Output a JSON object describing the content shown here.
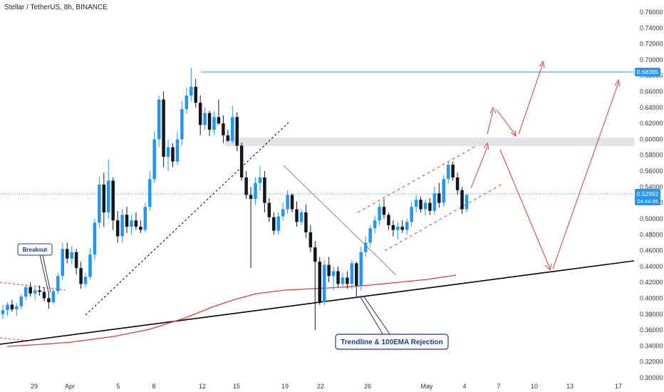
{
  "header": {
    "title": "Stellar / TetherUS, 8h, BINANCE"
  },
  "price_labels": {
    "resistance": "0.68385",
    "current": "0.52992",
    "countdown": "04:44:35"
  },
  "colors": {
    "up": "#2196f3",
    "down": "#131722",
    "ema": "#e53935",
    "trend": "#000000",
    "resistance": "#2196f3",
    "projection": "#e53935",
    "zone": "#d6d8dc"
  },
  "annotations": {
    "breakout": "Breakout",
    "rejection": "Trendline & 100EMA Rejection"
  },
  "chart_data": {
    "type": "candlestick",
    "title": "Stellar / TetherUS, 8h, BINANCE",
    "y_ticks": [
      "0.76000",
      "0.74000",
      "0.72000",
      "0.70000",
      "0.68000",
      "0.66000",
      "0.64000",
      "0.62000",
      "0.60000",
      "0.58000",
      "0.56000",
      "0.54000",
      "0.52000",
      "0.50000",
      "0.48000",
      "0.46000",
      "0.44000",
      "0.42000",
      "0.40000",
      "0.38000",
      "0.36000",
      "0.34000",
      "0.32000",
      "0.30000"
    ],
    "ylim": [
      0.3,
      0.76
    ],
    "x_ticks": [
      "29",
      "Apr",
      "5",
      "8",
      "12",
      "15",
      "19",
      "22",
      "26",
      "May",
      "4",
      "7",
      "10",
      "13",
      "17"
    ],
    "candles": [
      {
        "o": 0.38,
        "h": 0.392,
        "l": 0.374,
        "c": 0.385
      },
      {
        "o": 0.385,
        "h": 0.395,
        "l": 0.378,
        "c": 0.392
      },
      {
        "o": 0.392,
        "h": 0.398,
        "l": 0.383,
        "c": 0.386
      },
      {
        "o": 0.386,
        "h": 0.394,
        "l": 0.378,
        "c": 0.39
      },
      {
        "o": 0.39,
        "h": 0.405,
        "l": 0.386,
        "c": 0.402
      },
      {
        "o": 0.402,
        "h": 0.418,
        "l": 0.398,
        "c": 0.414
      },
      {
        "o": 0.414,
        "h": 0.42,
        "l": 0.402,
        "c": 0.406
      },
      {
        "o": 0.406,
        "h": 0.414,
        "l": 0.398,
        "c": 0.41
      },
      {
        "o": 0.41,
        "h": 0.416,
        "l": 0.403,
        "c": 0.408
      },
      {
        "o": 0.408,
        "h": 0.414,
        "l": 0.396,
        "c": 0.4
      },
      {
        "o": 0.4,
        "h": 0.408,
        "l": 0.387,
        "c": 0.395
      },
      {
        "o": 0.395,
        "h": 0.412,
        "l": 0.392,
        "c": 0.409
      },
      {
        "o": 0.409,
        "h": 0.432,
        "l": 0.405,
        "c": 0.428
      },
      {
        "o": 0.428,
        "h": 0.47,
        "l": 0.423,
        "c": 0.462
      },
      {
        "o": 0.462,
        "h": 0.47,
        "l": 0.444,
        "c": 0.45
      },
      {
        "o": 0.45,
        "h": 0.465,
        "l": 0.443,
        "c": 0.458
      },
      {
        "o": 0.458,
        "h": 0.462,
        "l": 0.43,
        "c": 0.438
      },
      {
        "o": 0.438,
        "h": 0.446,
        "l": 0.412,
        "c": 0.418
      },
      {
        "o": 0.418,
        "h": 0.432,
        "l": 0.414,
        "c": 0.427
      },
      {
        "o": 0.427,
        "h": 0.463,
        "l": 0.424,
        "c": 0.455
      },
      {
        "o": 0.455,
        "h": 0.5,
        "l": 0.448,
        "c": 0.495
      },
      {
        "o": 0.495,
        "h": 0.553,
        "l": 0.488,
        "c": 0.543
      },
      {
        "o": 0.543,
        "h": 0.558,
        "l": 0.49,
        "c": 0.508
      },
      {
        "o": 0.508,
        "h": 0.575,
        "l": 0.5,
        "c": 0.548
      },
      {
        "o": 0.548,
        "h": 0.552,
        "l": 0.486,
        "c": 0.498
      },
      {
        "o": 0.498,
        "h": 0.51,
        "l": 0.47,
        "c": 0.478
      },
      {
        "o": 0.478,
        "h": 0.512,
        "l": 0.47,
        "c": 0.505
      },
      {
        "o": 0.505,
        "h": 0.515,
        "l": 0.482,
        "c": 0.49
      },
      {
        "o": 0.49,
        "h": 0.505,
        "l": 0.48,
        "c": 0.498
      },
      {
        "o": 0.498,
        "h": 0.508,
        "l": 0.486,
        "c": 0.49
      },
      {
        "o": 0.49,
        "h": 0.498,
        "l": 0.482,
        "c": 0.486
      },
      {
        "o": 0.486,
        "h": 0.52,
        "l": 0.483,
        "c": 0.515
      },
      {
        "o": 0.515,
        "h": 0.56,
        "l": 0.51,
        "c": 0.55
      },
      {
        "o": 0.55,
        "h": 0.61,
        "l": 0.545,
        "c": 0.6
      },
      {
        "o": 0.6,
        "h": 0.655,
        "l": 0.59,
        "c": 0.65
      },
      {
        "o": 0.65,
        "h": 0.66,
        "l": 0.565,
        "c": 0.578
      },
      {
        "o": 0.578,
        "h": 0.6,
        "l": 0.56,
        "c": 0.59
      },
      {
        "o": 0.59,
        "h": 0.595,
        "l": 0.565,
        "c": 0.572
      },
      {
        "o": 0.572,
        "h": 0.61,
        "l": 0.568,
        "c": 0.6
      },
      {
        "o": 0.6,
        "h": 0.648,
        "l": 0.592,
        "c": 0.638
      },
      {
        "o": 0.638,
        "h": 0.665,
        "l": 0.632,
        "c": 0.655
      },
      {
        "o": 0.655,
        "h": 0.69,
        "l": 0.648,
        "c": 0.666
      },
      {
        "o": 0.666,
        "h": 0.676,
        "l": 0.64,
        "c": 0.646
      },
      {
        "o": 0.646,
        "h": 0.655,
        "l": 0.605,
        "c": 0.618
      },
      {
        "o": 0.618,
        "h": 0.64,
        "l": 0.612,
        "c": 0.633
      },
      {
        "o": 0.633,
        "h": 0.636,
        "l": 0.604,
        "c": 0.612
      },
      {
        "o": 0.612,
        "h": 0.635,
        "l": 0.606,
        "c": 0.628
      },
      {
        "o": 0.628,
        "h": 0.65,
        "l": 0.618,
        "c": 0.62
      },
      {
        "o": 0.62,
        "h": 0.63,
        "l": 0.595,
        "c": 0.605
      },
      {
        "o": 0.605,
        "h": 0.612,
        "l": 0.597,
        "c": 0.598
      },
      {
        "o": 0.598,
        "h": 0.642,
        "l": 0.595,
        "c": 0.628
      },
      {
        "o": 0.628,
        "h": 0.634,
        "l": 0.585,
        "c": 0.592
      },
      {
        "o": 0.592,
        "h": 0.596,
        "l": 0.548,
        "c": 0.552
      },
      {
        "o": 0.552,
        "h": 0.56,
        "l": 0.525,
        "c": 0.53
      },
      {
        "o": 0.53,
        "h": 0.54,
        "l": 0.438,
        "c": 0.525
      },
      {
        "o": 0.525,
        "h": 0.552,
        "l": 0.518,
        "c": 0.545
      },
      {
        "o": 0.545,
        "h": 0.566,
        "l": 0.535,
        "c": 0.552
      },
      {
        "o": 0.552,
        "h": 0.56,
        "l": 0.508,
        "c": 0.52
      },
      {
        "o": 0.52,
        "h": 0.526,
        "l": 0.496,
        "c": 0.502
      },
      {
        "o": 0.502,
        "h": 0.508,
        "l": 0.48,
        "c": 0.485
      },
      {
        "o": 0.485,
        "h": 0.508,
        "l": 0.48,
        "c": 0.503
      },
      {
        "o": 0.503,
        "h": 0.52,
        "l": 0.498,
        "c": 0.512
      },
      {
        "o": 0.512,
        "h": 0.536,
        "l": 0.506,
        "c": 0.53
      },
      {
        "o": 0.53,
        "h": 0.532,
        "l": 0.508,
        "c": 0.512
      },
      {
        "o": 0.512,
        "h": 0.522,
        "l": 0.49,
        "c": 0.496
      },
      {
        "o": 0.496,
        "h": 0.512,
        "l": 0.492,
        "c": 0.508
      },
      {
        "o": 0.508,
        "h": 0.518,
        "l": 0.476,
        "c": 0.483
      },
      {
        "o": 0.483,
        "h": 0.492,
        "l": 0.458,
        "c": 0.464
      },
      {
        "o": 0.464,
        "h": 0.472,
        "l": 0.36,
        "c": 0.446
      },
      {
        "o": 0.446,
        "h": 0.452,
        "l": 0.392,
        "c": 0.395
      },
      {
        "o": 0.395,
        "h": 0.448,
        "l": 0.391,
        "c": 0.442
      },
      {
        "o": 0.442,
        "h": 0.452,
        "l": 0.42,
        "c": 0.428
      },
      {
        "o": 0.428,
        "h": 0.44,
        "l": 0.41,
        "c": 0.434
      },
      {
        "o": 0.434,
        "h": 0.44,
        "l": 0.414,
        "c": 0.418
      },
      {
        "o": 0.418,
        "h": 0.432,
        "l": 0.414,
        "c": 0.426
      },
      {
        "o": 0.426,
        "h": 0.434,
        "l": 0.412,
        "c": 0.418
      },
      {
        "o": 0.418,
        "h": 0.448,
        "l": 0.412,
        "c": 0.444
      },
      {
        "o": 0.444,
        "h": 0.446,
        "l": 0.402,
        "c": 0.416
      },
      {
        "o": 0.416,
        "h": 0.465,
        "l": 0.41,
        "c": 0.458
      },
      {
        "o": 0.458,
        "h": 0.478,
        "l": 0.452,
        "c": 0.47
      },
      {
        "o": 0.47,
        "h": 0.492,
        "l": 0.464,
        "c": 0.488
      },
      {
        "o": 0.488,
        "h": 0.504,
        "l": 0.482,
        "c": 0.498
      },
      {
        "o": 0.498,
        "h": 0.52,
        "l": 0.492,
        "c": 0.515
      },
      {
        "o": 0.515,
        "h": 0.525,
        "l": 0.5,
        "c": 0.505
      },
      {
        "o": 0.505,
        "h": 0.508,
        "l": 0.486,
        "c": 0.492
      },
      {
        "o": 0.492,
        "h": 0.498,
        "l": 0.478,
        "c": 0.486
      },
      {
        "o": 0.486,
        "h": 0.496,
        "l": 0.474,
        "c": 0.49
      },
      {
        "o": 0.49,
        "h": 0.498,
        "l": 0.482,
        "c": 0.486
      },
      {
        "o": 0.486,
        "h": 0.5,
        "l": 0.48,
        "c": 0.496
      },
      {
        "o": 0.496,
        "h": 0.522,
        "l": 0.49,
        "c": 0.515
      },
      {
        "o": 0.515,
        "h": 0.53,
        "l": 0.508,
        "c": 0.524
      },
      {
        "o": 0.524,
        "h": 0.528,
        "l": 0.508,
        "c": 0.512
      },
      {
        "o": 0.512,
        "h": 0.524,
        "l": 0.504,
        "c": 0.52
      },
      {
        "o": 0.52,
        "h": 0.526,
        "l": 0.505,
        "c": 0.51
      },
      {
        "o": 0.51,
        "h": 0.54,
        "l": 0.505,
        "c": 0.532
      },
      {
        "o": 0.532,
        "h": 0.545,
        "l": 0.514,
        "c": 0.52
      },
      {
        "o": 0.52,
        "h": 0.555,
        "l": 0.515,
        "c": 0.55
      },
      {
        "o": 0.55,
        "h": 0.572,
        "l": 0.544,
        "c": 0.568
      },
      {
        "o": 0.568,
        "h": 0.572,
        "l": 0.548,
        "c": 0.552
      },
      {
        "o": 0.552,
        "h": 0.558,
        "l": 0.53,
        "c": 0.536
      },
      {
        "o": 0.536,
        "h": 0.54,
        "l": 0.506,
        "c": 0.512
      },
      {
        "o": 0.512,
        "h": 0.532,
        "l": 0.508,
        "c": 0.53
      }
    ]
  }
}
